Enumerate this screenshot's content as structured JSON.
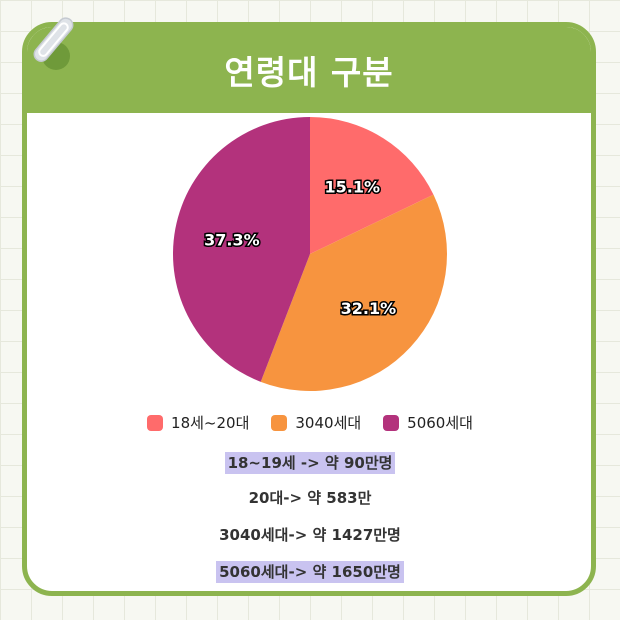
{
  "header": {
    "title": "연령대 구분"
  },
  "colors": {
    "accent_green": "#8db44f",
    "highlight": "#c9c3f0"
  },
  "chart_data": {
    "type": "pie",
    "title": "",
    "categories": [
      "18세~20대",
      "3040세대",
      "5060세대"
    ],
    "values": [
      15.1,
      32.1,
      37.3
    ],
    "value_labels": [
      "15.1%",
      "32.1%",
      "37.3%"
    ],
    "colors": [
      "#ff6b6b",
      "#f7943f",
      "#b3327c"
    ],
    "legend": "bottom"
  },
  "notes": [
    {
      "text": "18~19세  -> 약 90만명",
      "highlight": true
    },
    {
      "text": "20대-> 약 583만",
      "highlight": false
    },
    {
      "text": "3040세대-> 약 1427만명",
      "highlight": false
    },
    {
      "text": "5060세대-> 약 1650만명",
      "highlight": true
    }
  ]
}
